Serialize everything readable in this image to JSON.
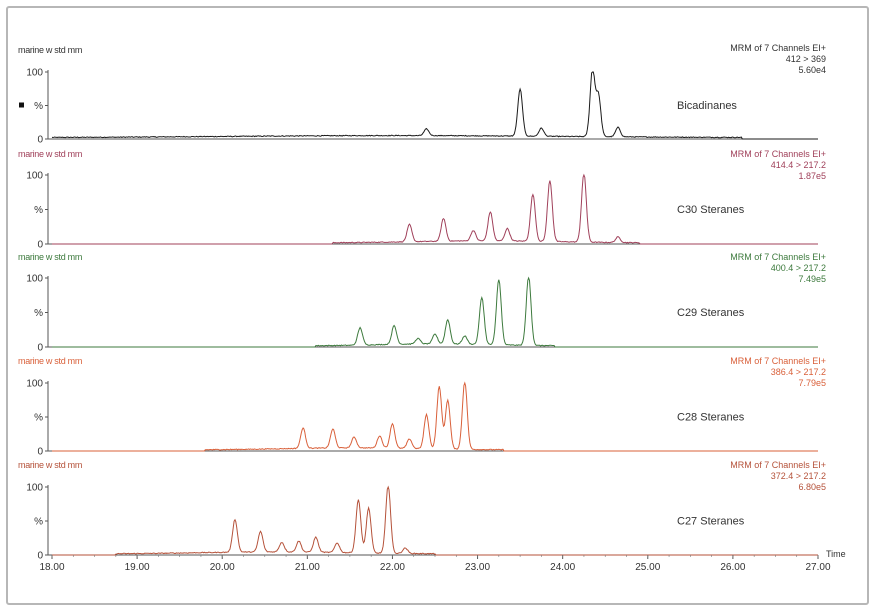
{
  "chart_data": {
    "type": "line",
    "x_axis": {
      "label": "Time",
      "ticks": [
        "18.00",
        "19.00",
        "20.00",
        "21.00",
        "22.00",
        "23.00",
        "24.00",
        "25.00",
        "26.00",
        "27.00"
      ],
      "range": [
        18.0,
        27.0
      ]
    },
    "panels": [
      {
        "sample": "marine w std mm",
        "header_lines": [
          "MRM of 7 Channels EI+",
          "412 > 369",
          "5.60e4"
        ],
        "label": "Bicadinanes",
        "color": "#1a1a1a",
        "y_ticks": [
          "100",
          "%",
          "0"
        ],
        "noise_range": [
          18.0,
          26.1
        ],
        "baseline": 1.5,
        "peaks": [
          {
            "x": 22.4,
            "h": 10
          },
          {
            "x": 23.5,
            "h": 70
          },
          {
            "x": 23.75,
            "h": 12
          },
          {
            "x": 24.35,
            "h": 100
          },
          {
            "x": 24.42,
            "h": 62
          },
          {
            "x": 24.65,
            "h": 14
          }
        ]
      },
      {
        "sample": "marine w std mm",
        "header_lines": [
          "MRM of 7 Channels EI+",
          "414.4 > 217.2",
          "1.87e5"
        ],
        "label": "C30 Steranes",
        "color": "#a0405a",
        "y_ticks": [
          "100",
          "%",
          "0"
        ],
        "noise_range": [
          21.3,
          24.9
        ],
        "baseline": 1.0,
        "peaks": [
          {
            "x": 22.2,
            "h": 25
          },
          {
            "x": 22.6,
            "h": 33
          },
          {
            "x": 22.95,
            "h": 15
          },
          {
            "x": 23.15,
            "h": 42
          },
          {
            "x": 23.35,
            "h": 18
          },
          {
            "x": 23.65,
            "h": 68
          },
          {
            "x": 23.85,
            "h": 88
          },
          {
            "x": 24.25,
            "h": 100
          },
          {
            "x": 24.65,
            "h": 8
          }
        ]
      },
      {
        "sample": "marine w std mm",
        "header_lines": [
          "MRM of 7 Channels EI+",
          "400.4 > 217.2",
          "7.49e5"
        ],
        "label": "C29 Steranes",
        "color": "#3d7a3d",
        "y_ticks": [
          "100",
          "%",
          "0"
        ],
        "noise_range": [
          21.1,
          23.9
        ],
        "baseline": 1.0,
        "peaks": [
          {
            "x": 21.62,
            "h": 25
          },
          {
            "x": 22.02,
            "h": 27
          },
          {
            "x": 22.3,
            "h": 8
          },
          {
            "x": 22.5,
            "h": 14
          },
          {
            "x": 22.65,
            "h": 35
          },
          {
            "x": 22.85,
            "h": 12
          },
          {
            "x": 23.05,
            "h": 68
          },
          {
            "x": 23.25,
            "h": 95
          },
          {
            "x": 23.6,
            "h": 100
          }
        ]
      },
      {
        "sample": "marine w std mm",
        "header_lines": [
          "MRM of 7 Channels EI+",
          "386.4 > 217.2",
          "7.79e5"
        ],
        "label": "C28 Steranes",
        "color": "#d9603a",
        "y_ticks": [
          "100",
          "%",
          "0"
        ],
        "noise_range": [
          19.8,
          23.3
        ],
        "baseline": 1.0,
        "peaks": [
          {
            "x": 20.95,
            "h": 30
          },
          {
            "x": 21.3,
            "h": 28
          },
          {
            "x": 21.55,
            "h": 16
          },
          {
            "x": 21.85,
            "h": 18
          },
          {
            "x": 22.0,
            "h": 36
          },
          {
            "x": 22.2,
            "h": 14
          },
          {
            "x": 22.4,
            "h": 50
          },
          {
            "x": 22.55,
            "h": 92
          },
          {
            "x": 22.65,
            "h": 72
          },
          {
            "x": 22.85,
            "h": 100
          }
        ]
      },
      {
        "sample": "marine w std mm",
        "header_lines": [
          "MRM of 7 Channels EI+",
          "372.4 > 217.2",
          "6.80e5"
        ],
        "label": "C27 Steranes",
        "color": "#b5523a",
        "y_ticks": [
          "100",
          "%",
          "0"
        ],
        "noise_range": [
          18.75,
          22.5
        ],
        "baseline": 1.0,
        "peaks": [
          {
            "x": 20.15,
            "h": 48
          },
          {
            "x": 20.45,
            "h": 30
          },
          {
            "x": 20.7,
            "h": 14
          },
          {
            "x": 20.9,
            "h": 16
          },
          {
            "x": 21.1,
            "h": 22
          },
          {
            "x": 21.35,
            "h": 14
          },
          {
            "x": 21.6,
            "h": 78
          },
          {
            "x": 21.72,
            "h": 66
          },
          {
            "x": 21.95,
            "h": 100
          },
          {
            "x": 22.15,
            "h": 8
          }
        ]
      }
    ]
  }
}
